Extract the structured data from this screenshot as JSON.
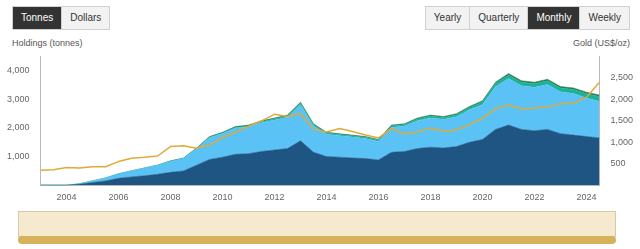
{
  "controls": {
    "unit": [
      "Tonnes",
      "Dollars"
    ],
    "active_unit": "Tonnes",
    "period": [
      "Yearly",
      "Quarterly",
      "Monthly",
      "Weekly"
    ],
    "active_period": "Monthly"
  },
  "chart_data": {
    "type": "area",
    "stacked": true,
    "grid": false,
    "y_label": "Holdings (tonnes)",
    "y2_label": "Gold (US$/oz)",
    "x": [
      2003,
      2003.5,
      2004,
      2004.5,
      2005,
      2005.5,
      2006,
      2006.5,
      2007,
      2007.5,
      2008,
      2008.5,
      2009,
      2009.5,
      2010,
      2010.5,
      2011,
      2011.5,
      2012,
      2012.5,
      2013,
      2013.5,
      2014,
      2014.5,
      2015,
      2015.5,
      2016,
      2016.5,
      2017,
      2017.5,
      2018,
      2018.5,
      2019,
      2019.5,
      2020,
      2020.5,
      2021,
      2021.5,
      2022,
      2022.5,
      2023,
      2023.5,
      2024,
      2024.5
    ],
    "xlim": [
      2003,
      2024.5
    ],
    "xticks": [
      2004,
      2006,
      2008,
      2010,
      2012,
      2014,
      2016,
      2018,
      2020,
      2022,
      2024
    ],
    "ylim": [
      0,
      4500
    ],
    "yticks": [
      {
        "value": 1000,
        "label": "1,000"
      },
      {
        "value": 2000,
        "label": "2,000"
      },
      {
        "value": 3000,
        "label": "3,000"
      },
      {
        "value": 4000,
        "label": "4,000"
      }
    ],
    "y2lim": [
      0,
      3000
    ],
    "y2ticks": [
      500,
      {
        "value": 1000,
        "label": "1,000"
      },
      {
        "value": 1500,
        "label": "1,500"
      },
      {
        "value": 2000,
        "label": "2,000"
      },
      {
        "value": 2500,
        "label": "2,500"
      }
    ],
    "series": [
      {
        "color": "#1f5582",
        "values": [
          0,
          0,
          0,
          30,
          90,
          150,
          240,
          290,
          330,
          380,
          450,
          500,
          700,
          900,
          980,
          1080,
          1100,
          1180,
          1230,
          1280,
          1550,
          1150,
          1000,
          980,
          950,
          930,
          880,
          1150,
          1180,
          1280,
          1330,
          1300,
          1350,
          1500,
          1600,
          1950,
          2100,
          1950,
          1900,
          1950,
          1800,
          1750,
          1700,
          1650
        ]
      },
      {
        "color": "#5bc2f5",
        "values": [
          0,
          0,
          0,
          20,
          60,
          100,
          160,
          210,
          270,
          320,
          390,
          435,
          570,
          760,
          825,
          915,
          940,
          1005,
          1050,
          1095,
          1260,
          920,
          780,
          750,
          730,
          700,
          650,
          870,
          885,
          975,
          1020,
          1000,
          1045,
          1135,
          1215,
          1490,
          1625,
          1525,
          1520,
          1565,
          1465,
          1455,
          1345,
          1285
        ]
      },
      {
        "color": "#1bb394",
        "values": [
          0,
          0,
          0,
          0,
          0,
          0,
          0,
          0,
          0,
          0,
          0,
          5,
          10,
          15,
          20,
          25,
          30,
          35,
          40,
          45,
          55,
          50,
          45,
          45,
          45,
          45,
          45,
          50,
          55,
          60,
          65,
          65,
          70,
          75,
          90,
          110,
          120,
          120,
          125,
          130,
          130,
          140,
          150,
          160
        ]
      },
      {
        "color": "#2d7a52",
        "values": [
          0,
          0,
          0,
          0,
          0,
          0,
          0,
          0,
          0,
          0,
          10,
          10,
          20,
          25,
          25,
          30,
          30,
          30,
          30,
          30,
          35,
          30,
          25,
          25,
          25,
          25,
          25,
          30,
          30,
          35,
          35,
          35,
          35,
          40,
          45,
          50,
          55,
          55,
          55,
          55,
          55,
          55,
          55,
          55
        ]
      },
      {
        "type": "line",
        "axis": "y2",
        "color": "#e0a93a",
        "values": [
          350,
          360,
          410,
          400,
          430,
          430,
          550,
          630,
          650,
          680,
          900,
          920,
          860,
          940,
          1110,
          1230,
          1370,
          1500,
          1650,
          1600,
          1670,
          1300,
          1240,
          1320,
          1250,
          1170,
          1100,
          1320,
          1190,
          1240,
          1330,
          1250,
          1290,
          1410,
          1560,
          1780,
          1870,
          1780,
          1800,
          1820,
          1900,
          1910,
          2050,
          2400
        ]
      }
    ]
  }
}
